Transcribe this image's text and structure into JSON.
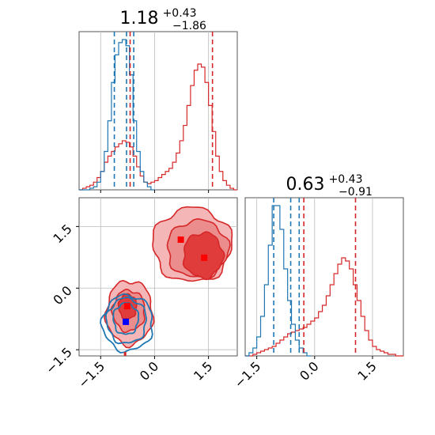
{
  "chart_data": {
    "type": "corner",
    "parameters": [
      {
        "title_value": "1.18",
        "title_plus": "+0.43",
        "title_minus": "−1.86",
        "xlim": [
          -2.1,
          2.3
        ],
        "ticks": [
          -1.5,
          0.0,
          1.5
        ],
        "tick_labels": [
          "−1.5",
          "0.0",
          "1.5"
        ]
      },
      {
        "title_value": "0.63",
        "title_plus": "+0.43",
        "title_minus": "−0.91",
        "xlim": [
          -1.8,
          2.3
        ],
        "ticks": [
          -1.5,
          0.0,
          1.5
        ],
        "tick_labels": [
          "−1.5",
          "0.0",
          "1.5"
        ]
      }
    ],
    "ylim_2d": [
      -1.65,
      2.2
    ],
    "series": [
      {
        "color": "#1f77b4",
        "quantiles_p1": [
          -1.12,
          -0.78,
          -0.58
        ],
        "quantiles_p2": [
          -1.06,
          -0.62,
          -0.4
        ],
        "hist_p1": {
          "x": [
            -2.05,
            -1.95,
            -1.85,
            -1.75,
            -1.65,
            -1.55,
            -1.45,
            -1.35,
            -1.25,
            -1.15,
            -1.05,
            -0.95,
            -0.85,
            -0.75,
            -0.65,
            -0.55,
            -0.45,
            -0.35,
            -0.25,
            -0.15,
            -0.05
          ],
          "y": [
            0,
            0,
            0,
            1,
            2,
            5,
            12,
            25,
            45,
            70,
            88,
            96,
            98,
            94,
            75,
            45,
            25,
            12,
            5,
            2,
            0
          ]
        },
        "hist_p2": {
          "x": [
            -1.75,
            -1.65,
            -1.55,
            -1.45,
            -1.35,
            -1.25,
            -1.15,
            -1.05,
            -0.95,
            -0.85,
            -0.75,
            -0.65,
            -0.55,
            -0.45,
            -0.35,
            -0.25,
            -0.15
          ],
          "y": [
            0,
            2,
            5,
            12,
            25,
            45,
            70,
            95,
            95,
            80,
            55,
            35,
            20,
            10,
            5,
            2,
            0
          ]
        },
        "contours_2d": [
          {
            "cx": -0.8,
            "cy": -0.75,
            "rx": 0.35,
            "ry": 0.38
          },
          {
            "cx": -0.78,
            "cy": -0.8,
            "rx": 0.55,
            "ry": 0.55
          },
          {
            "cx": -0.75,
            "cy": -0.85,
            "rx": 0.7,
            "ry": 0.68
          }
        ],
        "best_fit": {
          "x": -0.8,
          "y": -0.82
        },
        "best_fit_color": "#0000ff"
      },
      {
        "color": "#d62728",
        "quantiles_p1": [
          -0.68,
          1.61
        ],
        "quantiles_p2": [
          -0.28,
          1.06
        ],
        "hist_p1": {
          "x": [
            -2.05,
            -1.95,
            -1.85,
            -1.75,
            -1.65,
            -1.55,
            -1.45,
            -1.35,
            -1.25,
            -1.15,
            -1.05,
            -0.95,
            -0.85,
            -0.75,
            -0.65,
            -0.55,
            -0.45,
            -0.35,
            -0.25,
            -0.15,
            -0.05,
            0.05,
            0.15,
            0.25,
            0.35,
            0.45,
            0.55,
            0.65,
            0.75,
            0.85,
            0.95,
            1.05,
            1.15,
            1.25,
            1.35,
            1.45,
            1.55,
            1.65,
            1.75,
            1.85,
            1.95,
            2.05,
            2.15,
            2.25
          ],
          "y": [
            0,
            1,
            2,
            3,
            5,
            8,
            12,
            18,
            22,
            25,
            28,
            30,
            32,
            31,
            28,
            22,
            15,
            9,
            5,
            4,
            5,
            6,
            8,
            10,
            12,
            14,
            18,
            24,
            32,
            42,
            55,
            68,
            78,
            82,
            80,
            70,
            55,
            38,
            22,
            12,
            6,
            3,
            1,
            0
          ]
        },
        "hist_p2": {
          "x": [
            -1.75,
            -1.65,
            -1.55,
            -1.45,
            -1.35,
            -1.25,
            -1.15,
            -1.05,
            -0.95,
            -0.85,
            -0.75,
            -0.65,
            -0.55,
            -0.45,
            -0.35,
            -0.25,
            -0.15,
            -0.05,
            0.05,
            0.15,
            0.25,
            0.35,
            0.45,
            0.55,
            0.65,
            0.75,
            0.85,
            0.95,
            1.05,
            1.15,
            1.25,
            1.35,
            1.45,
            1.55,
            1.65,
            1.75,
            1.85,
            1.95,
            2.05,
            2.15,
            2.25
          ],
          "y": [
            0,
            0,
            1,
            2,
            3,
            4,
            5,
            6,
            8,
            10,
            12,
            14,
            15,
            16,
            17,
            18,
            20,
            22,
            24,
            28,
            32,
            38,
            45,
            52,
            58,
            62,
            60,
            55,
            45,
            35,
            25,
            16,
            10,
            6,
            4,
            3,
            2,
            1,
            1,
            0,
            0
          ]
        },
        "contours_2d": [
          {
            "cx": 1.35,
            "cy": 0.8,
            "rx": 0.55,
            "ry": 0.55
          },
          {
            "cx": 1.2,
            "cy": 0.95,
            "rx": 0.85,
            "ry": 0.7
          },
          {
            "cx": 1.05,
            "cy": 1.05,
            "rx": 1.1,
            "ry": 0.9
          },
          {
            "cx": -0.75,
            "cy": -0.45,
            "rx": 0.25,
            "ry": 0.3
          },
          {
            "cx": -0.72,
            "cy": -0.55,
            "rx": 0.45,
            "ry": 0.5
          },
          {
            "cx": -0.7,
            "cy": -0.6,
            "rx": 0.65,
            "ry": 0.78
          }
        ],
        "best_fit_points": [
          {
            "x": 0.73,
            "y": 1.18
          },
          {
            "x": 1.38,
            "y": 0.74
          },
          {
            "x": -0.76,
            "y": -0.44
          }
        ],
        "best_fit_color": "#ff0000",
        "truth_marker_x": -0.82
      }
    ],
    "grid": true,
    "legend": "none"
  }
}
